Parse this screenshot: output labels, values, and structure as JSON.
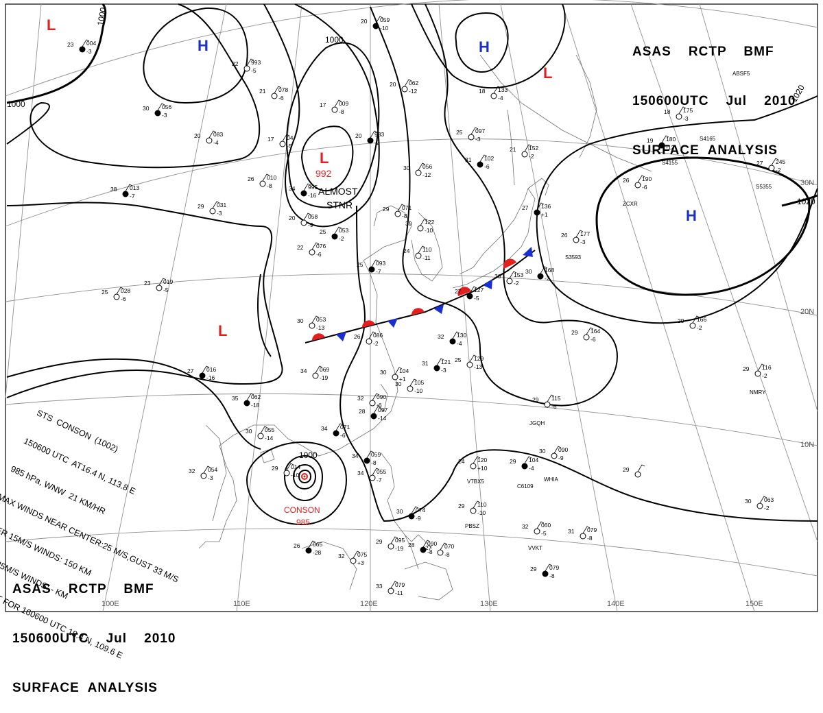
{
  "header": {
    "line1": "ASAS    RCTP    BMF",
    "line2": "150600UTC    Jul    2010",
    "line3": "SURFACE  ANALYSIS"
  },
  "colors": {
    "high": "#1a2fd0",
    "low": "#e41f1f",
    "coast": "#707070",
    "grid": "#909090",
    "isobar": "#000000"
  },
  "isobar_labels": [
    {
      "id": "iso-1000-nw",
      "text": "1000"
    },
    {
      "id": "iso-1000-w",
      "text": "1000"
    },
    {
      "id": "iso-1000-n",
      "text": "1000"
    },
    {
      "id": "iso-1020-e",
      "text": "1020"
    },
    {
      "id": "iso-1020-ne",
      "text": "1020"
    },
    {
      "id": "iso-1000-cyclone",
      "text": "1000"
    }
  ],
  "pressure_centers": [
    {
      "id": "low-nw",
      "type": "L"
    },
    {
      "id": "high-n",
      "type": "H"
    },
    {
      "id": "low-n",
      "type": "L",
      "value": "992",
      "note1": "ALMOST",
      "note2": "STNR"
    },
    {
      "id": "high-ne",
      "type": "H"
    },
    {
      "id": "low-ne",
      "type": "L"
    },
    {
      "id": "high-e",
      "type": "H"
    },
    {
      "id": "low-w",
      "type": "L"
    }
  ],
  "latitude_labels": [
    "30N",
    "20N",
    "10N"
  ],
  "longitude_labels": [
    "100E",
    "110E",
    "120E",
    "130E",
    "140E",
    "150E"
  ],
  "typhoon": {
    "name": "CONSON",
    "pressure": "985",
    "note_lines": [
      "STS  CONSON  (1002)",
      "150600 UTC  AT16.4 N, 113.8 E",
      "985 hPa, WNW  21 KM/HR",
      "MAX WINDS NEAR CENTER:25 M/S,GUST 33 M/S",
      "OVER 15M/S WINDS: 150 KM",
      "OVER 25M/S WINDS: - KM",
      "FORECAST FOR 160600 UTC 18.4 N, 109.6 E"
    ]
  },
  "station_plots": [
    {
      "t": "23",
      "p": "004",
      "d": "-3"
    },
    {
      "t": "22",
      "p": "993",
      "d": "-5"
    },
    {
      "t": "21",
      "p": "078",
      "d": "-6"
    },
    {
      "t": "30",
      "p": "056",
      "d": "-3"
    },
    {
      "t": "20",
      "p": "083",
      "d": "-4"
    },
    {
      "t": "17",
      "p": "009",
      "d": "-8"
    },
    {
      "t": "20",
      "p": "059",
      "d": "-10"
    },
    {
      "t": "20",
      "p": "062",
      "d": "-12"
    },
    {
      "t": "18",
      "p": "133",
      "d": "-4"
    },
    {
      "t": "20",
      "p": "983",
      "d": "-2"
    },
    {
      "t": "17",
      "p": "04",
      "d": "-5"
    },
    {
      "t": "26",
      "p": "010",
      "d": "-8"
    },
    {
      "t": "34",
      "p": "995",
      "d": "-16"
    },
    {
      "t": "30",
      "p": "056",
      "d": "-12"
    },
    {
      "t": "25",
      "p": "097",
      "d": "-3"
    },
    {
      "t": "31",
      "p": "102",
      "d": "-6"
    },
    {
      "t": "21",
      "p": "152",
      "d": "-2"
    },
    {
      "t": "18",
      "p": "175",
      "d": "-3"
    },
    {
      "t": "19",
      "p": "180",
      "d": "-12"
    },
    {
      "t": "26",
      "p": "190",
      "d": "-6"
    },
    {
      "t": "27",
      "p": "245",
      "d": "-2"
    },
    {
      "t": "38",
      "p": "013",
      "d": "-7"
    },
    {
      "t": "29",
      "p": "031",
      "d": "-3"
    },
    {
      "t": "20",
      "p": "058",
      "d": "-9"
    },
    {
      "t": "25",
      "p": "053",
      "d": "-2"
    },
    {
      "t": "29",
      "p": "071",
      "d": "-8"
    },
    {
      "t": "30",
      "p": "122",
      "d": "-10"
    },
    {
      "t": "27",
      "p": "136",
      "d": "+1"
    },
    {
      "t": "26",
      "p": "177",
      "d": "-3"
    },
    {
      "t": "22",
      "p": "076",
      "d": "-6"
    },
    {
      "t": "25",
      "p": "093",
      "d": "-7"
    },
    {
      "t": "24",
      "p": "110",
      "d": "-11"
    },
    {
      "t": "30",
      "p": "153",
      "d": "-2"
    },
    {
      "t": "30",
      "p": "168",
      "d": "-2"
    },
    {
      "t": "23",
      "p": "019",
      "d": "-5"
    },
    {
      "t": "25",
      "p": "028",
      "d": "-6"
    },
    {
      "t": "27",
      "p": "127",
      "d": "-5"
    },
    {
      "t": "30",
      "p": "053",
      "d": "-13"
    },
    {
      "t": "26",
      "p": "086",
      "d": "-2"
    },
    {
      "t": "32",
      "p": "130",
      "d": "-4"
    },
    {
      "t": "29",
      "p": "166",
      "d": "-2"
    },
    {
      "t": "29",
      "p": "164",
      "d": "-6"
    },
    {
      "t": "27",
      "p": "016",
      "d": "-16"
    },
    {
      "t": "34",
      "p": "069",
      "d": "-19"
    },
    {
      "t": "30",
      "p": "104",
      "d": "+1"
    },
    {
      "t": "31",
      "p": "121",
      "d": "-3"
    },
    {
      "t": "25",
      "p": "129",
      "d": "-13"
    },
    {
      "t": "29",
      "p": "116",
      "d": "-2"
    },
    {
      "t": "35",
      "p": "062",
      "d": "-18"
    },
    {
      "t": "32",
      "p": "090",
      "d": "-6"
    },
    {
      "t": "30",
      "p": "105",
      "d": "-10"
    },
    {
      "t": "28",
      "p": "097",
      "d": "-14"
    },
    {
      "t": "29",
      "p": "115",
      "d": "-6"
    },
    {
      "t": "30",
      "p": "055",
      "d": "-14"
    },
    {
      "t": "34",
      "p": "071",
      "d": "-6"
    },
    {
      "t": "32",
      "p": "054",
      "d": "-3"
    },
    {
      "t": "29",
      "p": "014",
      "d": "-10"
    },
    {
      "t": "34",
      "p": "059",
      "d": "-8"
    },
    {
      "t": "34",
      "p": "055",
      "d": "-7"
    },
    {
      "t": "24",
      "p": "120",
      "d": "+10"
    },
    {
      "t": "29",
      "p": "104",
      "d": "-4"
    },
    {
      "t": "30",
      "p": "090",
      "d": "-9"
    },
    {
      "t": "29",
      "p": "",
      "d": ""
    },
    {
      "t": "30",
      "p": "074",
      "d": "-9"
    },
    {
      "t": "29",
      "p": "110",
      "d": "-10"
    },
    {
      "t": "30",
      "p": "063",
      "d": "-2"
    },
    {
      "t": "26",
      "p": "065",
      "d": "-28"
    },
    {
      "t": "32",
      "p": "075",
      "d": "+3"
    },
    {
      "t": "29",
      "p": "095",
      "d": "-19"
    },
    {
      "t": "28",
      "p": "090",
      "d": "-8"
    },
    {
      "t": "27",
      "p": "070",
      "d": "-8"
    },
    {
      "t": "32",
      "p": "060",
      "d": "-5"
    },
    {
      "t": "29",
      "p": "079",
      "d": "-8"
    },
    {
      "t": "33",
      "p": "079",
      "d": "-11"
    },
    {
      "t": "31",
      "p": "079",
      "d": "-8"
    }
  ],
  "station_ids": [
    "ABSF5",
    "S4155",
    "S4165",
    "S5355",
    "ZCXR",
    "S3593",
    "JGQH",
    "NMRY",
    "C6109",
    "WHIA",
    "V7BX5",
    "PBSZ",
    "VVKT"
  ]
}
